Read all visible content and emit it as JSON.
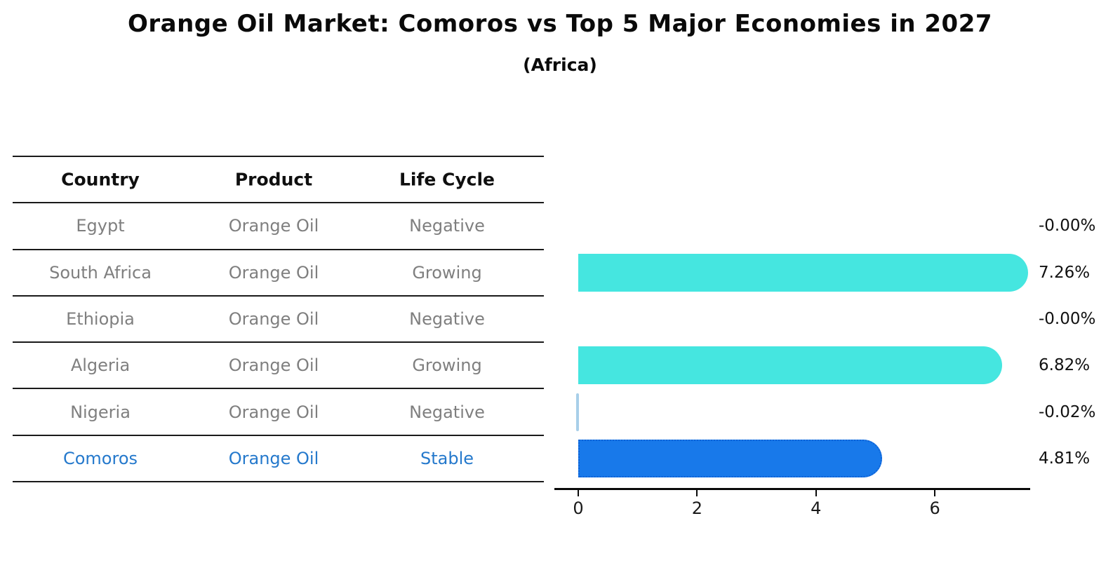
{
  "title": "Orange Oil Market: Comoros vs Top 5 Major Economies in 2027",
  "subtitle": "(Africa)",
  "table": {
    "headers": [
      "Country",
      "Product",
      "Life Cycle"
    ],
    "rows": [
      {
        "country": "Egypt",
        "product": "Orange Oil",
        "life_cycle": "Negative",
        "highlighted": false
      },
      {
        "country": "South Africa",
        "product": "Orange Oil",
        "life_cycle": "Growing",
        "highlighted": false
      },
      {
        "country": "Ethiopia",
        "product": "Orange Oil",
        "life_cycle": "Negative",
        "highlighted": false
      },
      {
        "country": "Algeria",
        "product": "Orange Oil",
        "life_cycle": "Growing",
        "highlighted": false
      },
      {
        "country": "Nigeria",
        "product": "Orange Oil",
        "life_cycle": "Negative",
        "highlighted": false
      },
      {
        "country": "Comoros",
        "product": "Orange Oil",
        "life_cycle": "Stable",
        "highlighted": true
      }
    ]
  },
  "chart_data": {
    "type": "bar",
    "orientation": "horizontal",
    "title": "Orange Oil Market: Comoros vs Top 5 Major Economies in 2027",
    "subtitle": "(Africa)",
    "categories": [
      "Egypt",
      "South Africa",
      "Ethiopia",
      "Algeria",
      "Nigeria",
      "Comoros"
    ],
    "values": [
      -0.0,
      7.26,
      -0.0,
      6.82,
      -0.02,
      4.81
    ],
    "value_labels": [
      "-0.00%",
      "7.26%",
      "-0.00%",
      "6.82%",
      "-0.02%",
      "4.81%"
    ],
    "unit": "%",
    "xlabel": "",
    "ylabel": "",
    "xticks": [
      "0",
      "2",
      "4",
      "6"
    ],
    "xtick_values": [
      0,
      2,
      4,
      6
    ],
    "xlim": [
      -0.4,
      7.6
    ],
    "grid": false,
    "legend_position": "none",
    "highlight_category": "Comoros",
    "colors": {
      "bar_default": "#45E6E0",
      "bar_highlight": "#1879EA",
      "bar_highlight_border": "#0e62d6",
      "bar_negative_sliver": "#A8CFE9",
      "axis": "#0a0a0a",
      "table_text": "#7f7f7f",
      "table_highlight_text": "#2579cc",
      "label_text": "#111111"
    }
  }
}
